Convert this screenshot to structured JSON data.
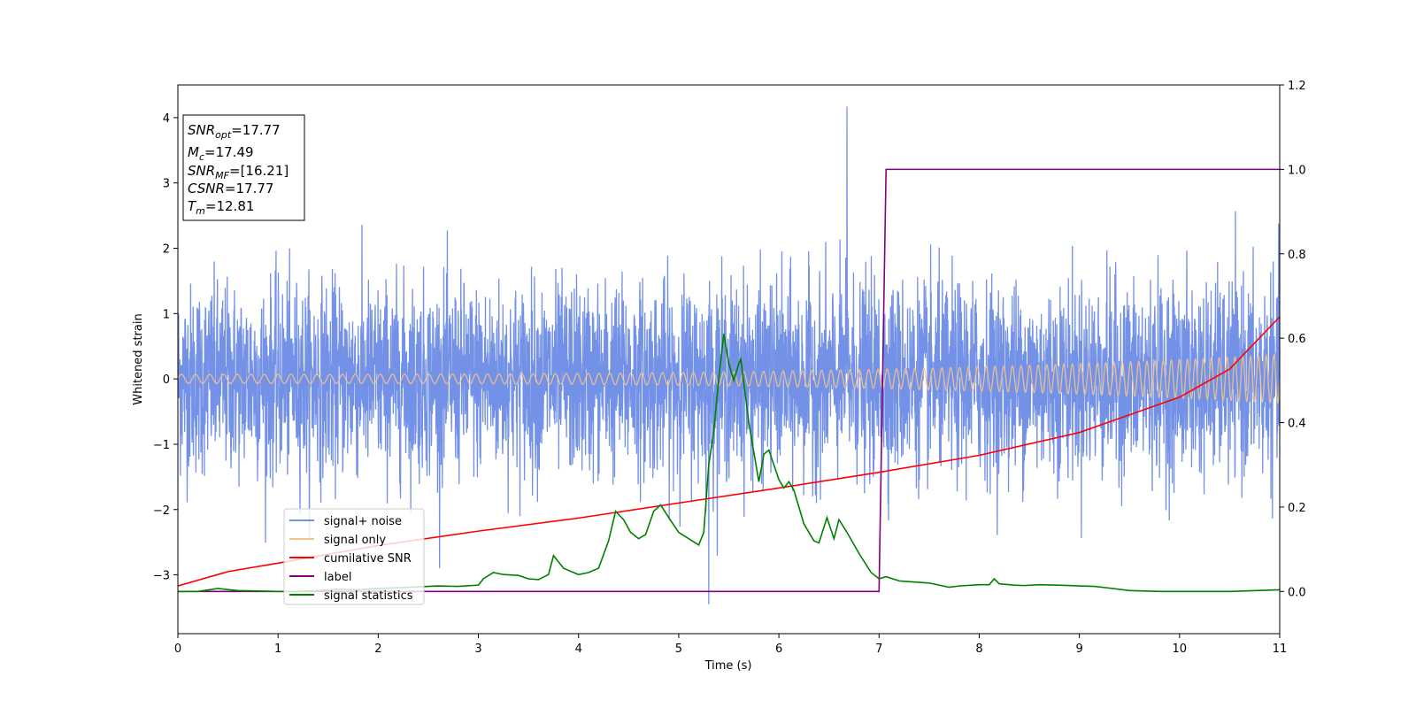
{
  "chart_data": {
    "type": "line",
    "title": "",
    "xlabel": "Time (s)",
    "ylabel": "Whitened strain",
    "ylabel_right": "",
    "xlim": [
      0,
      11
    ],
    "ylim": [
      -3.9,
      4.5
    ],
    "ylim_right": [
      -0.1,
      1.2
    ],
    "x_ticks": [
      0,
      1,
      2,
      3,
      4,
      5,
      6,
      7,
      8,
      9,
      10,
      11
    ],
    "x_tick_labels": [
      "0",
      "1",
      "2",
      "3",
      "4",
      "5",
      "6",
      "7",
      "8",
      "9",
      "10",
      "11"
    ],
    "y_ticks": [
      -3,
      -2,
      -1,
      0,
      1,
      2,
      3,
      4
    ],
    "y_tick_labels": [
      "−3",
      "−2",
      "−1",
      "0",
      "1",
      "2",
      "3",
      "4"
    ],
    "y_right_ticks": [
      0.0,
      0.2,
      0.4,
      0.6,
      0.8,
      1.0,
      1.2
    ],
    "y_right_tick_labels": [
      "0.0",
      "0.2",
      "0.4",
      "0.6",
      "0.8",
      "1.0",
      "1.2"
    ],
    "grid": false,
    "legend_position": "lower-left",
    "info_box": {
      "lines": [
        {
          "main": "SNR",
          "sub": "opt",
          "value": "=17.77"
        },
        {
          "main": "M",
          "sub": "c",
          "value": "=17.49"
        },
        {
          "main": "SNR",
          "sub": "MF",
          "value": "=[16.21]"
        },
        {
          "main": "CSNR",
          "sub": "",
          "value": "=17.77"
        },
        {
          "main": "T",
          "sub": "m",
          "value": "=12.81"
        }
      ]
    },
    "series": [
      {
        "name": "signal+ noise",
        "color": "#7391e6",
        "axis": "left",
        "description_values": {
          "x_range": [
            0,
            11
          ],
          "typical_band": [
            -1.8,
            1.8
          ],
          "max": 4.17,
          "max_at": 6.68,
          "min": -3.45,
          "min_at": 5.3
        }
      },
      {
        "name": "signal only",
        "color": "#f3c38a",
        "axis": "left",
        "chirp": {
          "amp_start": 0.07,
          "amp_end": 0.37,
          "freq_start_hz": 7,
          "freq_end_hz": 13
        }
      },
      {
        "name": "cumilative SNR",
        "color": "#ff0000",
        "axis": "left",
        "x": [
          0,
          0.5,
          1,
          2,
          3,
          4,
          5,
          6,
          7,
          8,
          9,
          10,
          10.5,
          11
        ],
        "y": [
          -3.17,
          -2.95,
          -2.82,
          -2.55,
          -2.33,
          -2.13,
          -1.9,
          -1.67,
          -1.43,
          -1.17,
          -0.82,
          -0.28,
          0.15,
          0.95
        ]
      },
      {
        "name": "label",
        "color": "#800080",
        "axis": "right",
        "x": [
          0,
          7.0,
          7.07,
          11
        ],
        "y": [
          0.0,
          0.0,
          1.0,
          1.0
        ]
      },
      {
        "name": "signal statistics",
        "color": "#008000",
        "axis": "right",
        "x": [
          0,
          0.2,
          0.4,
          0.6,
          0.8,
          1.0,
          1.2,
          1.4,
          1.6,
          1.8,
          2.0,
          2.2,
          2.4,
          2.6,
          2.8,
          3.0,
          3.05,
          3.15,
          3.25,
          3.4,
          3.5,
          3.6,
          3.7,
          3.75,
          3.85,
          4.0,
          4.1,
          4.2,
          4.3,
          4.37,
          4.45,
          4.52,
          4.6,
          4.67,
          4.75,
          4.82,
          4.9,
          5.0,
          5.1,
          5.2,
          5.25,
          5.3,
          5.35,
          5.4,
          5.45,
          5.5,
          5.55,
          5.6,
          5.62,
          5.7,
          5.8,
          5.85,
          5.9,
          6.0,
          6.05,
          6.1,
          6.15,
          6.25,
          6.35,
          6.4,
          6.48,
          6.55,
          6.6,
          6.68,
          6.8,
          6.92,
          7.0,
          7.07,
          7.2,
          7.5,
          7.7,
          7.8,
          8.0,
          8.1,
          8.15,
          8.2,
          8.35,
          8.45,
          8.6,
          8.8,
          9.0,
          9.15,
          9.3,
          9.5,
          9.8,
          10.2,
          10.5,
          11.0
        ],
        "y": [
          0.0,
          0.0,
          0.007,
          0.002,
          0.001,
          0.0,
          0.0,
          0.002,
          0.005,
          0.004,
          0.007,
          0.009,
          0.011,
          0.013,
          0.012,
          0.015,
          0.03,
          0.045,
          0.04,
          0.038,
          0.03,
          0.028,
          0.04,
          0.085,
          0.055,
          0.04,
          0.045,
          0.055,
          0.12,
          0.19,
          0.17,
          0.14,
          0.125,
          0.135,
          0.19,
          0.205,
          0.175,
          0.14,
          0.125,
          0.11,
          0.14,
          0.3,
          0.38,
          0.505,
          0.61,
          0.54,
          0.5,
          0.54,
          0.55,
          0.4,
          0.26,
          0.325,
          0.335,
          0.265,
          0.245,
          0.26,
          0.24,
          0.16,
          0.12,
          0.115,
          0.175,
          0.125,
          0.17,
          0.14,
          0.09,
          0.045,
          0.03,
          0.035,
          0.025,
          0.02,
          0.01,
          0.013,
          0.016,
          0.016,
          0.03,
          0.018,
          0.015,
          0.014,
          0.016,
          0.015,
          0.013,
          0.012,
          0.008,
          0.002,
          0.0,
          0.0,
          0.0,
          0.004
        ]
      }
    ]
  }
}
